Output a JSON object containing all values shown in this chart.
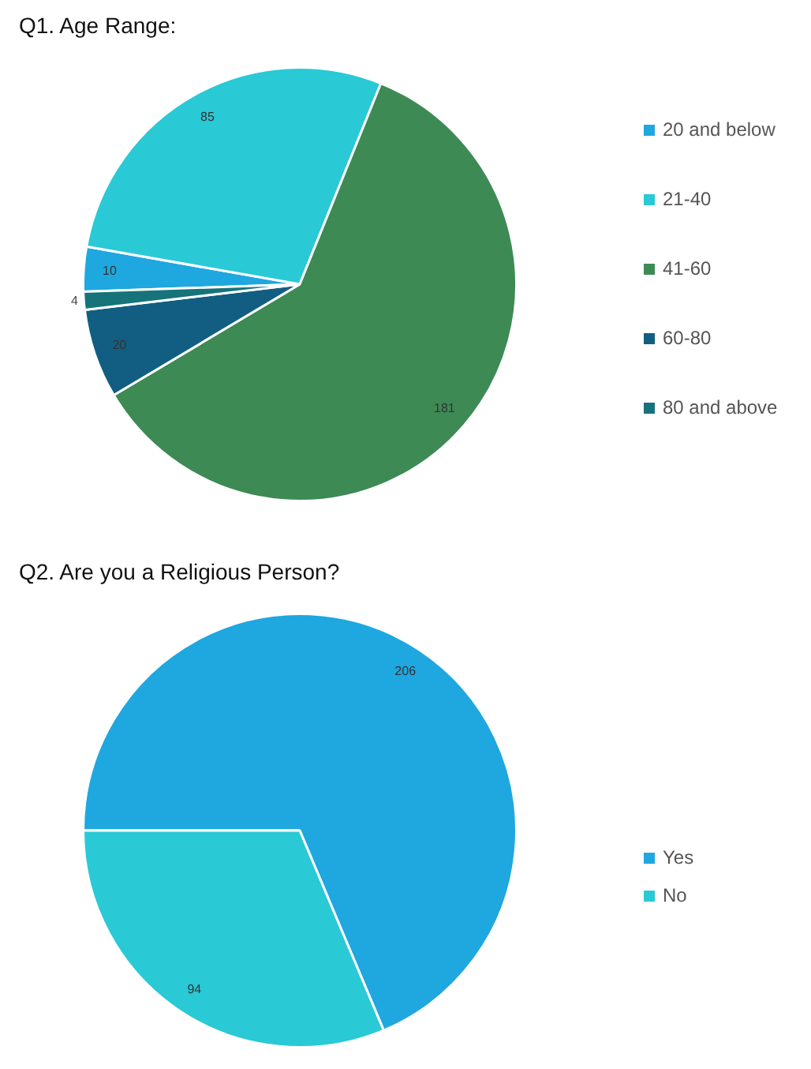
{
  "chart_data": [
    {
      "type": "pie",
      "title": "Q1. Age Range:",
      "categories": [
        "20 and below",
        "21-40",
        "41-60",
        "60-80",
        "80 and above"
      ],
      "values": [
        10,
        85,
        181,
        20,
        4
      ],
      "colors": [
        "#1fa7e0",
        "#29c9d6",
        "#3d8a55",
        "#125e82",
        "#16737a"
      ],
      "data_labels": true,
      "legend": "right"
    },
    {
      "type": "pie",
      "title": "Q2. Are you a Religious Person?",
      "categories": [
        "Yes",
        "No"
      ],
      "values": [
        206,
        94
      ],
      "colors": [
        "#1fa7e0",
        "#29c9d6"
      ],
      "data_labels": true,
      "legend": "right"
    }
  ]
}
